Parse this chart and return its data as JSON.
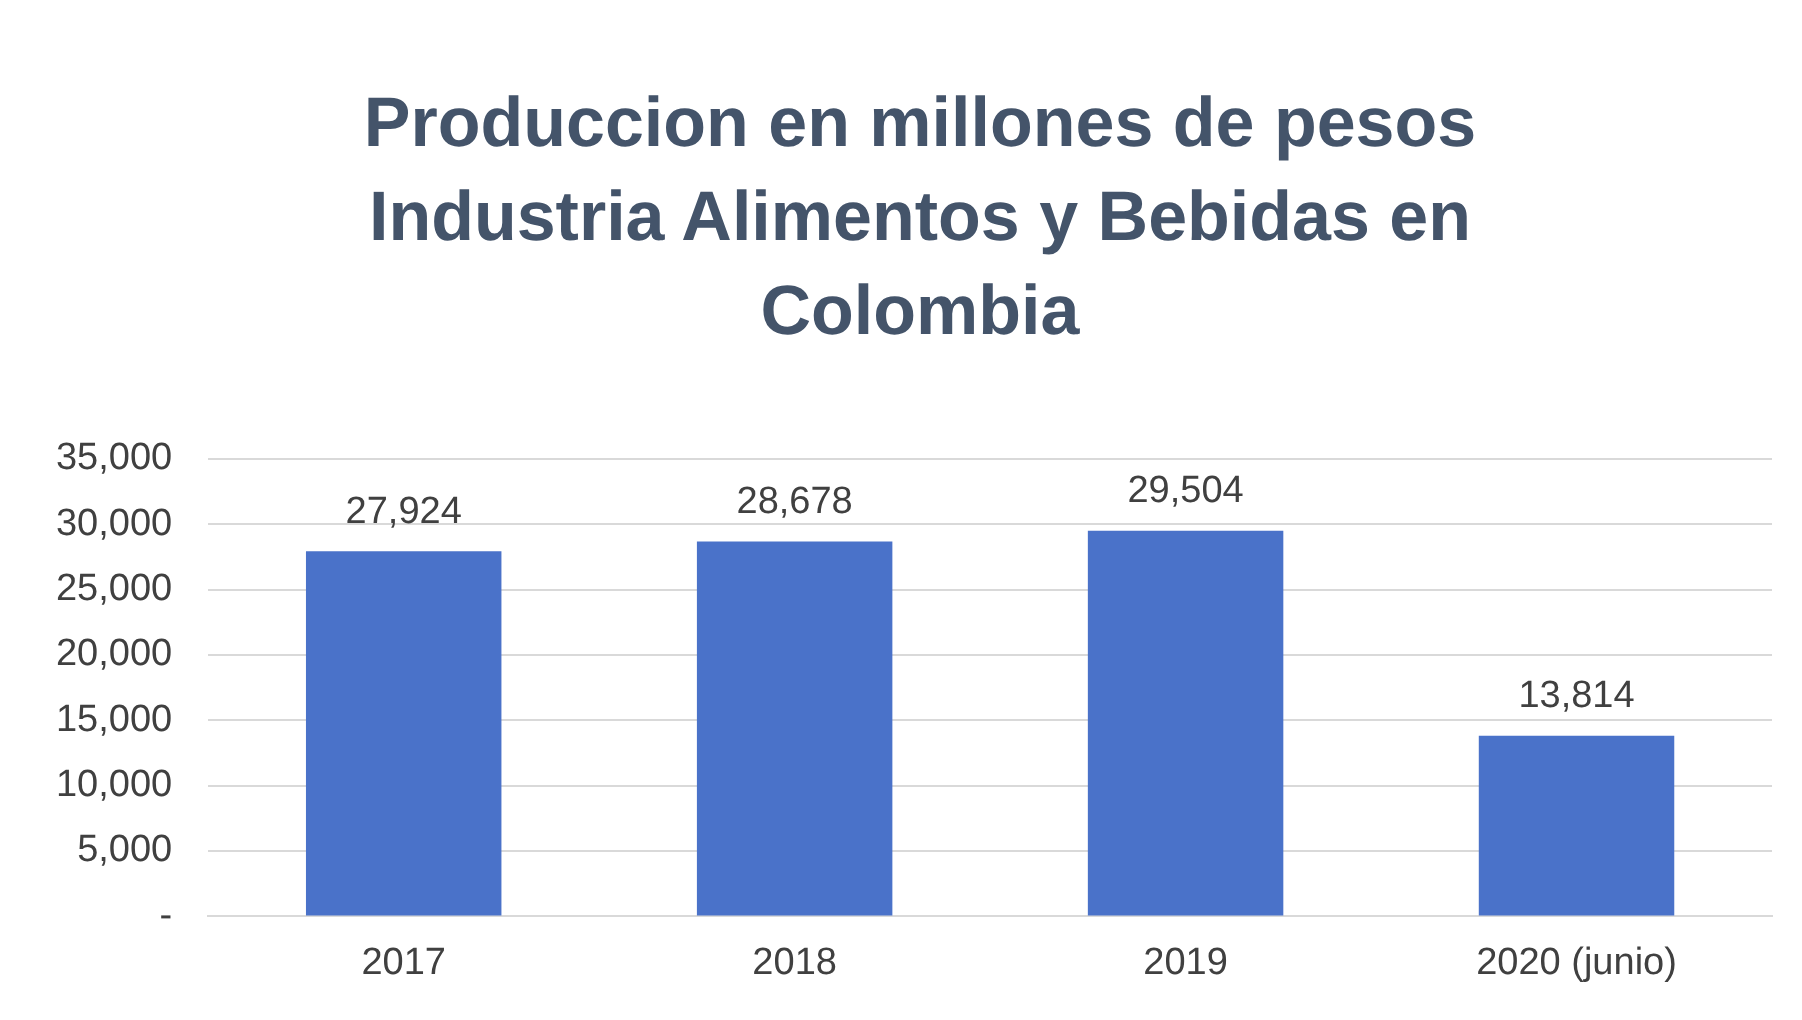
{
  "chart_data": {
    "type": "bar",
    "title": "Produccion en millones de pesos Industria Alimentos y Bebidas en Colombia",
    "categories": [
      "2017",
      "2018",
      "2019",
      "2020 (junio)"
    ],
    "values": [
      27924,
      28678,
      29504,
      13814
    ],
    "value_labels": [
      "27,924",
      "28,678",
      "29,504",
      "13,814"
    ],
    "color": "#4a72c9",
    "ylim": [
      0,
      35000
    ],
    "yticks": [
      {
        "value": 0,
        "label": "-"
      },
      {
        "value": 5000,
        "label": "5,000"
      },
      {
        "value": 10000,
        "label": "10,000"
      },
      {
        "value": 15000,
        "label": "15,000"
      },
      {
        "value": 20000,
        "label": "20,000"
      },
      {
        "value": 25000,
        "label": "25,000"
      },
      {
        "value": 30000,
        "label": "30,000"
      },
      {
        "value": 35000,
        "label": "35,000"
      }
    ],
    "grid": "y",
    "legend": false
  }
}
